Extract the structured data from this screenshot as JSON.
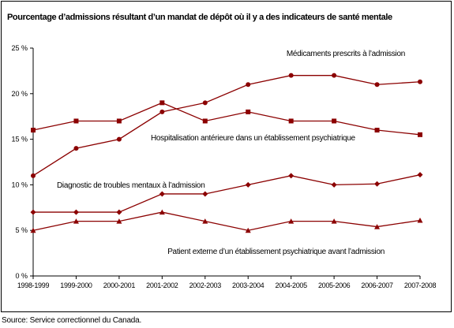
{
  "chart_data": {
    "type": "line",
    "title": "Pourcentage d’admissions résultant d’un mandat de dépôt où il y a des indicateurs de santé mentale",
    "categories": [
      "1998-1999",
      "1999-2000",
      "2000-2001",
      "2001-2002",
      "2002-2003",
      "2003-2004",
      "2004-2005",
      "2005-2006",
      "2006-2007",
      "2007-2008"
    ],
    "ylim": [
      0,
      25
    ],
    "yticks": [
      "0 %",
      "5 %",
      "10 %",
      "15 %",
      "20 %",
      "25 %"
    ],
    "grid": false,
    "legend": "labels placed near each series",
    "color": "#8b0000",
    "series": [
      {
        "name": "Médicaments prescrits à l’admission",
        "marker": "circle",
        "values": [
          11,
          14,
          15,
          18,
          19,
          21,
          22,
          22,
          21,
          21.3
        ]
      },
      {
        "name": "Hospitalisation antérieure dans un établissement psychiatrique",
        "marker": "square",
        "values": [
          16,
          17,
          17,
          19,
          17,
          18,
          17,
          17,
          16,
          15.5
        ]
      },
      {
        "name": "Diagnostic de troubles mentaux à l’admission",
        "marker": "diamond",
        "values": [
          7,
          7,
          7,
          9,
          9,
          10,
          11,
          10,
          10.1,
          11.1
        ]
      },
      {
        "name": "Patient externe d’un établissement psychiatrique avant l’admission",
        "marker": "triangle",
        "values": [
          5,
          6,
          6,
          7,
          6,
          5,
          6,
          6,
          5.4,
          6.1
        ]
      }
    ]
  },
  "source": "Source:  Service correctionnel du Canada."
}
